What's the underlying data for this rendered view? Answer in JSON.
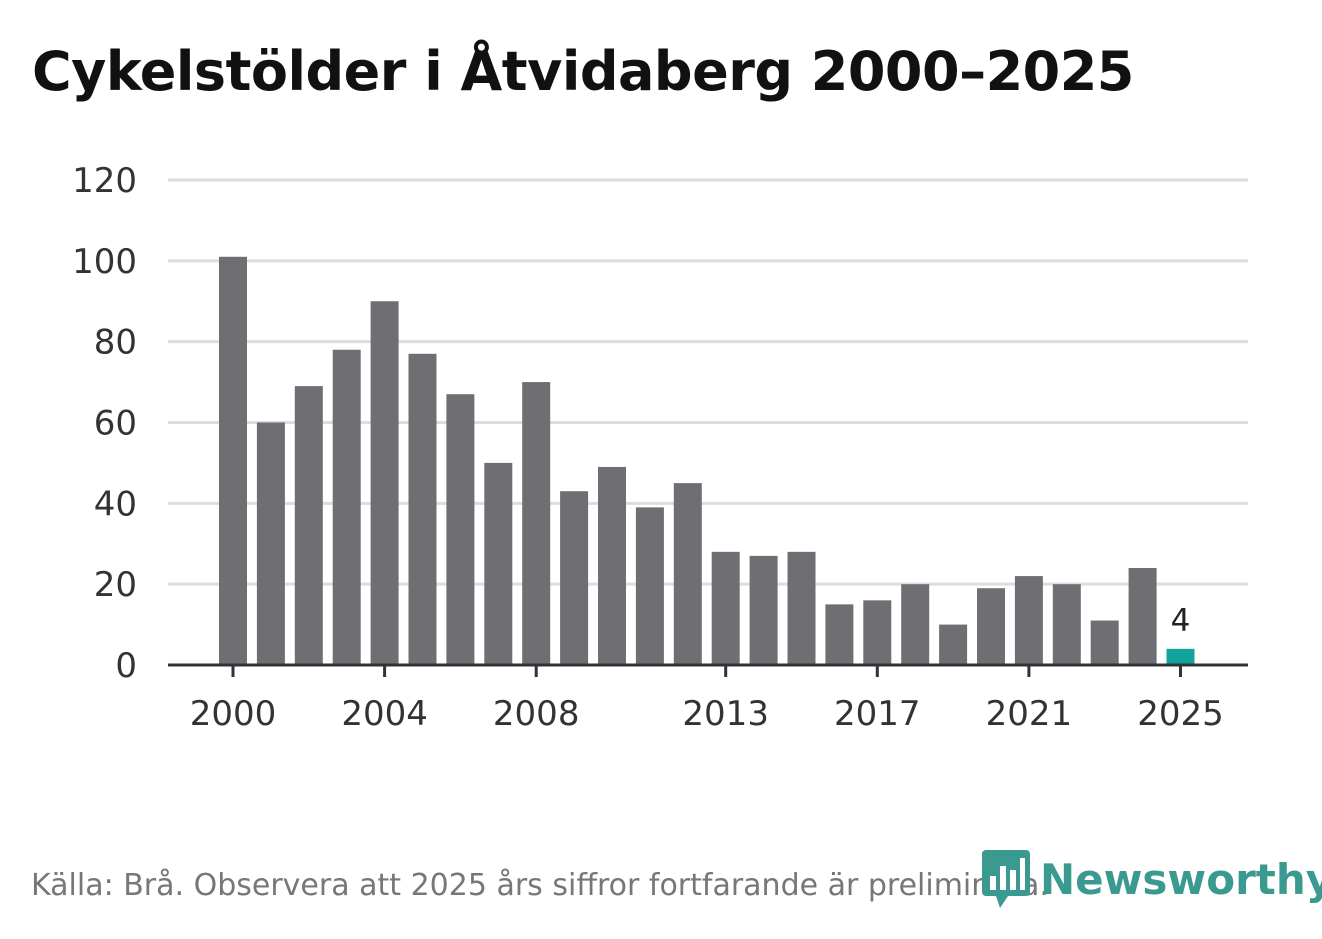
{
  "title": "Cykelstölder i Åtvidaberg 2000–2025",
  "source": "Källa: Brå. Observera att 2025 års siffror fortfarande är preliminära.",
  "brand": {
    "name": "Newsworthy",
    "icon": "newsworthy-logo-icon"
  },
  "colors": {
    "bar": "#6f6e73",
    "highlight": "#12a39b",
    "grid": "#dddddd",
    "axis": "#333333"
  },
  "chart_data": {
    "type": "bar",
    "title": "Cykelstölder i Åtvidaberg 2000–2025",
    "xlabel": "",
    "ylabel": "",
    "ylim": [
      0,
      120
    ],
    "yticks": [
      0,
      20,
      40,
      60,
      80,
      100,
      120
    ],
    "xtick_labels": [
      "2000",
      "2004",
      "2008",
      "2013",
      "2017",
      "2021",
      "2025"
    ],
    "categories": [
      "2000",
      "2001",
      "2002",
      "2003",
      "2004",
      "2005",
      "2006",
      "2007",
      "2008",
      "2009",
      "2010",
      "2011",
      "2012",
      "2013",
      "2014",
      "2015",
      "2016",
      "2017",
      "2018",
      "2019",
      "2020",
      "2021",
      "2022",
      "2023",
      "2024",
      "2025"
    ],
    "values": [
      101,
      60,
      69,
      78,
      90,
      77,
      67,
      50,
      70,
      43,
      49,
      39,
      45,
      28,
      27,
      28,
      15,
      16,
      20,
      10,
      19,
      22,
      20,
      11,
      24,
      4
    ],
    "highlight": {
      "category": "2025",
      "label": "4"
    },
    "grid": true
  }
}
